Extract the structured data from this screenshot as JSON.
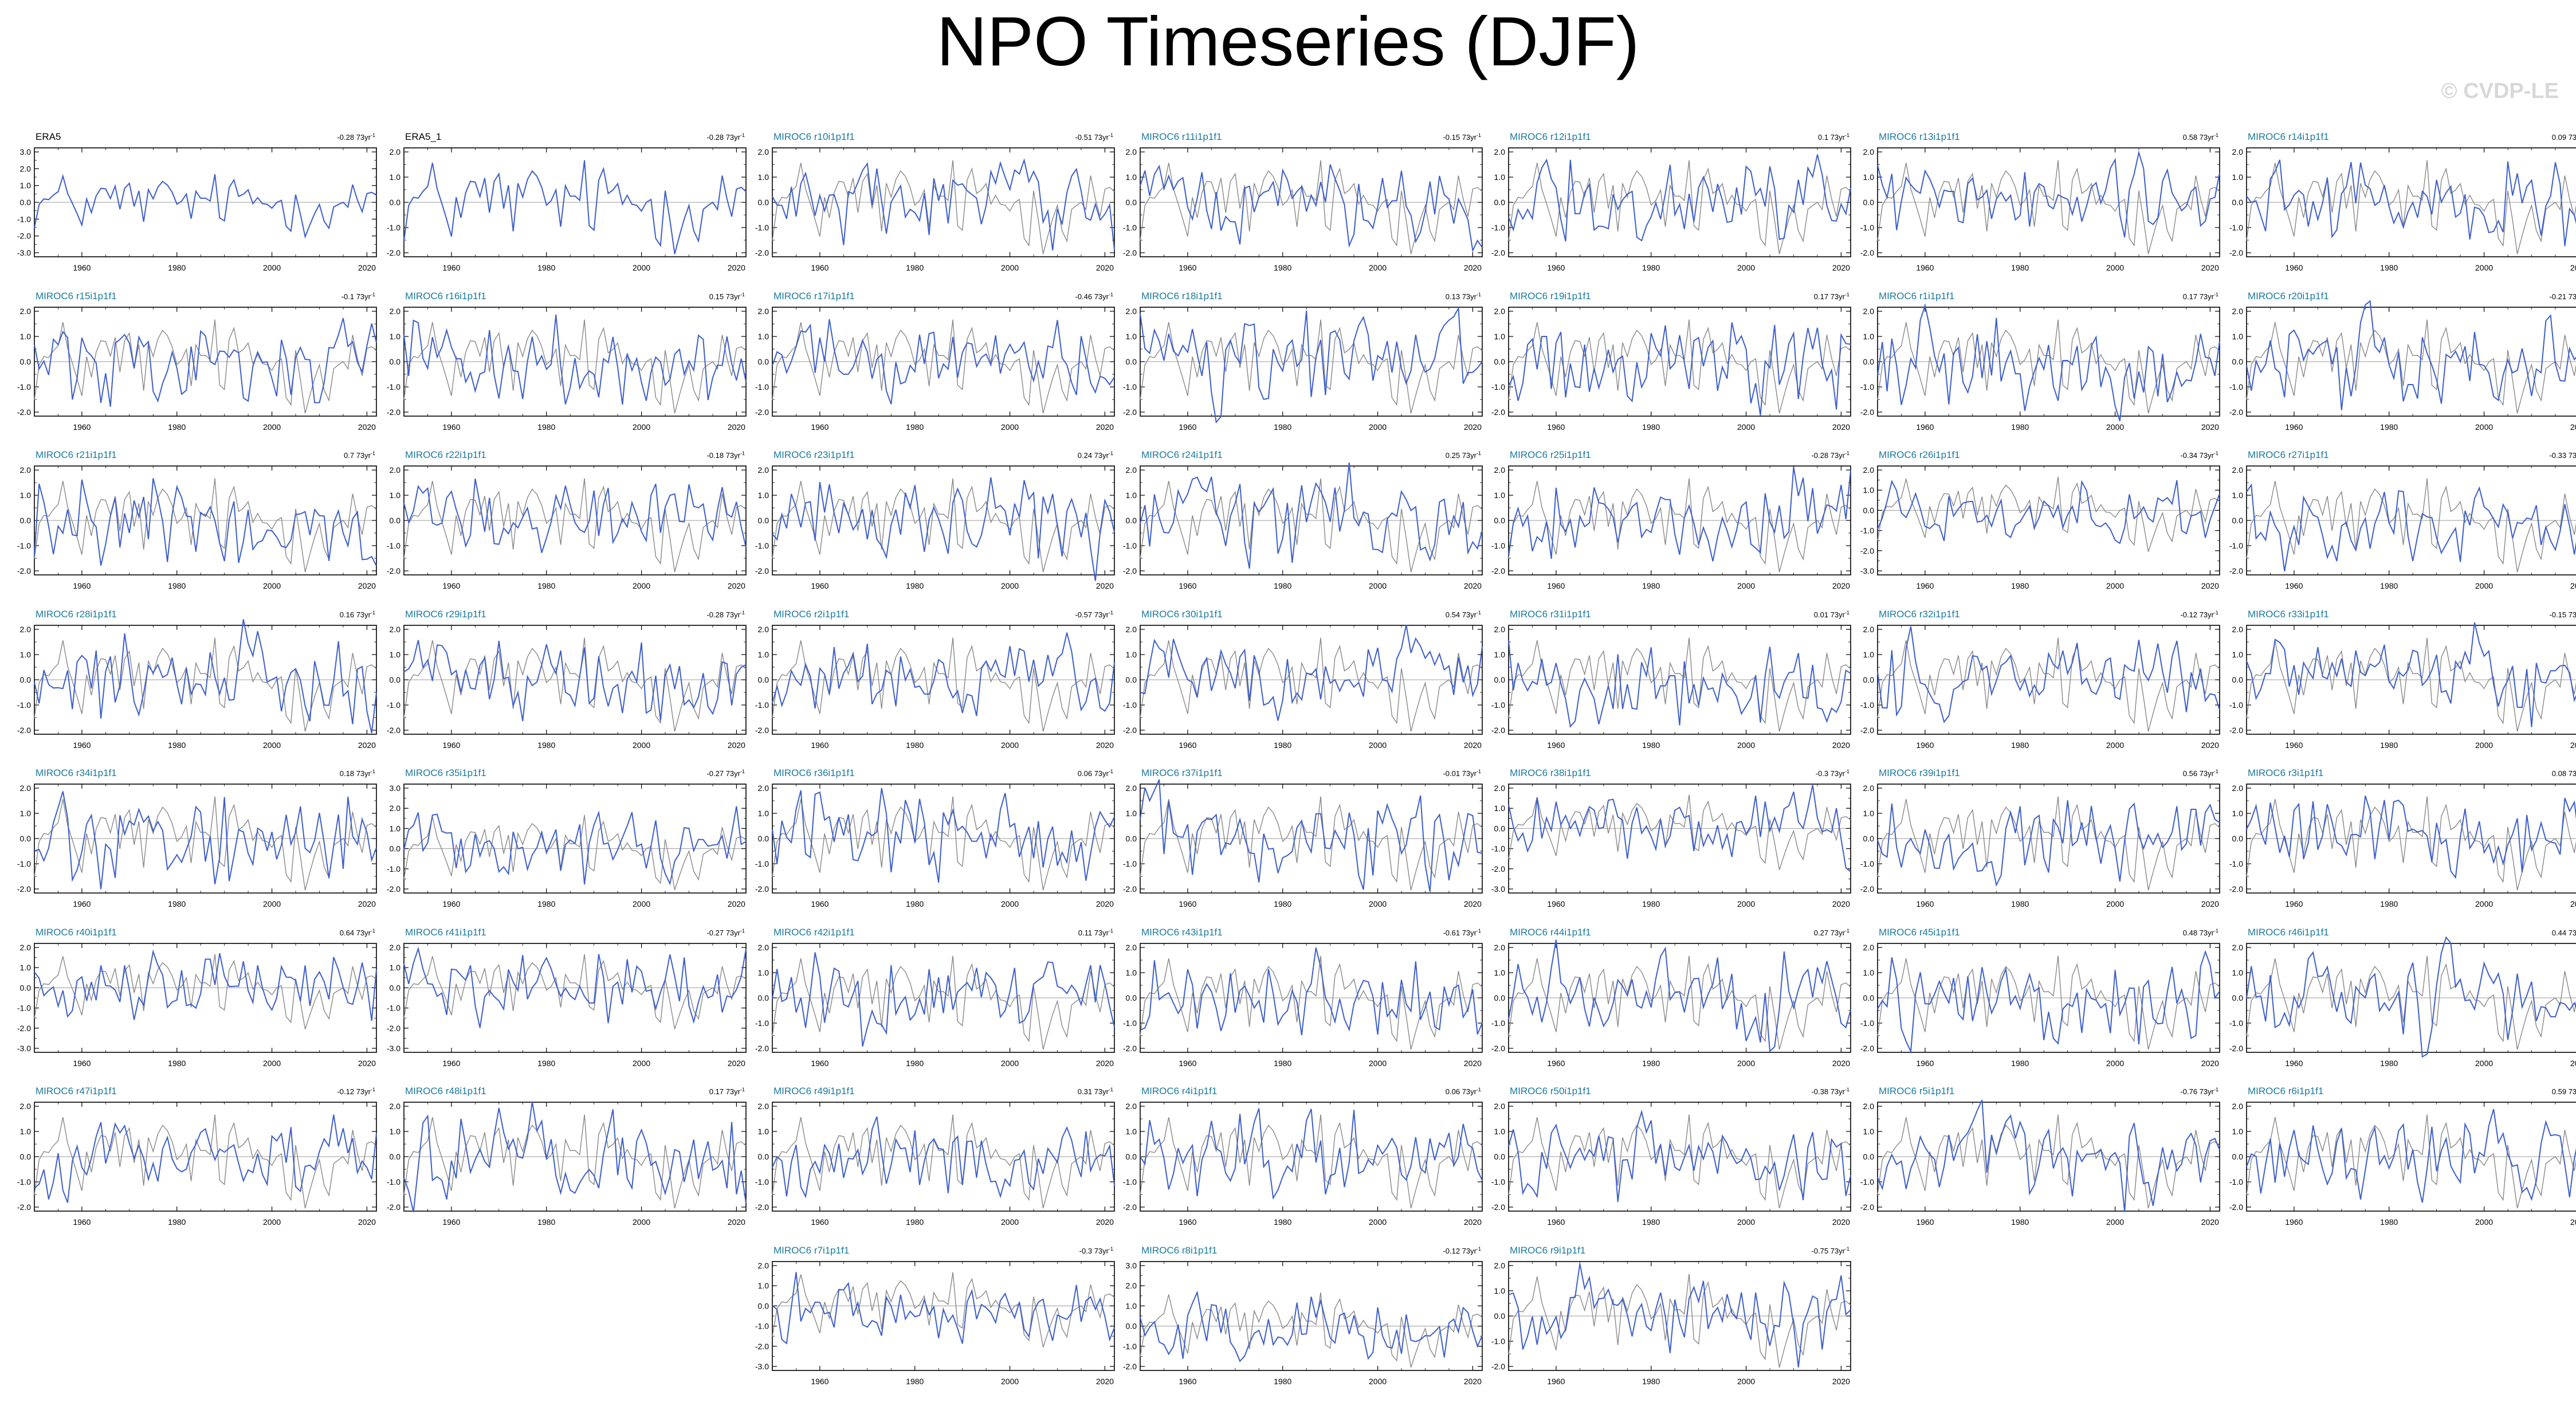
{
  "title": "NPO Timeseries (DJF)",
  "watermark": "© CVDP-LE",
  "colors": {
    "model_line": "#3d5fcc",
    "obs_line": "#888888",
    "zero_line": "#999999",
    "label_model": "#1a7aa0",
    "label_obs": "#000000"
  },
  "chart_data": {
    "type": "line",
    "title": "NPO Timeseries (DJF)",
    "x_range": [
      1950,
      2022
    ],
    "x_ticks": [
      1960,
      1980,
      2000,
      2020
    ],
    "grid": false,
    "note_series": "Each panel: blue = member NPO index, grey = ERA5 reference",
    "panels": [
      {
        "label": "ERA5",
        "trend": "-0.28",
        "yticks": [
          "3.0",
          "2.0",
          "1.0",
          "0.0",
          "-1.0",
          "-2.0",
          "-3.0"
        ]
      },
      {
        "label": "ERA5_1",
        "trend": "-0.28",
        "yticks": [
          "2.0",
          "1.0",
          "0.0",
          "-1.0",
          "-2.0"
        ]
      },
      {
        "label": "MIROC6 r10i1p1f1",
        "trend": "-0.51",
        "yticks": [
          "2.0",
          "1.0",
          "0.0",
          "-1.0",
          "-2.0"
        ]
      },
      {
        "label": "MIROC6 r11i1p1f1",
        "trend": "-0.15",
        "yticks": [
          "2.0",
          "1.0",
          "0.0",
          "-1.0",
          "-2.0"
        ]
      },
      {
        "label": "MIROC6 r12i1p1f1",
        "trend": "0.1",
        "yticks": [
          "2.0",
          "1.0",
          "0.0",
          "-1.0",
          "-2.0"
        ]
      },
      {
        "label": "MIROC6 r13i1p1f1",
        "trend": "0.58",
        "yticks": [
          "2.0",
          "1.0",
          "0.0",
          "-1.0",
          "-2.0"
        ]
      },
      {
        "label": "MIROC6 r14i1p1f1",
        "trend": "0.09",
        "yticks": [
          "2.0",
          "1.0",
          "0.0",
          "-1.0",
          "-2.0"
        ]
      },
      {
        "label": "MIROC6 r15i1p1f1",
        "trend": "-0.1",
        "yticks": [
          "2.0",
          "1.0",
          "0.0",
          "-1.0",
          "-2.0"
        ]
      },
      {
        "label": "MIROC6 r16i1p1f1",
        "trend": "0.15",
        "yticks": [
          "2.0",
          "1.0",
          "0.0",
          "-1.0",
          "-2.0"
        ]
      },
      {
        "label": "MIROC6 r17i1p1f1",
        "trend": "-0.46",
        "yticks": [
          "2.0",
          "1.0",
          "0.0",
          "-1.0",
          "-2.0"
        ]
      },
      {
        "label": "MIROC6 r18i1p1f1",
        "trend": "0.13",
        "yticks": [
          "2.0",
          "1.0",
          "0.0",
          "-1.0",
          "-2.0"
        ]
      },
      {
        "label": "MIROC6 r19i1p1f1",
        "trend": "0.17",
        "yticks": [
          "2.0",
          "1.0",
          "0.0",
          "-1.0",
          "-2.0"
        ]
      },
      {
        "label": "MIROC6 r1i1p1f1",
        "trend": "0.17",
        "yticks": [
          "2.0",
          "1.0",
          "0.0",
          "-1.0",
          "-2.0"
        ]
      },
      {
        "label": "MIROC6 r20i1p1f1",
        "trend": "-0.21",
        "yticks": [
          "2.0",
          "1.0",
          "0.0",
          "-1.0",
          "-2.0"
        ]
      },
      {
        "label": "MIROC6 r21i1p1f1",
        "trend": "0.7",
        "yticks": [
          "2.0",
          "1.0",
          "0.0",
          "-1.0",
          "-2.0"
        ]
      },
      {
        "label": "MIROC6 r22i1p1f1",
        "trend": "-0.18",
        "yticks": [
          "2.0",
          "1.0",
          "0.0",
          "-1.0",
          "-2.0"
        ]
      },
      {
        "label": "MIROC6 r23i1p1f1",
        "trend": "0.24",
        "yticks": [
          "2.0",
          "1.0",
          "0.0",
          "-1.0",
          "-2.0"
        ]
      },
      {
        "label": "MIROC6 r24i1p1f1",
        "trend": "0.25",
        "yticks": [
          "2.0",
          "1.0",
          "0.0",
          "-1.0",
          "-2.0"
        ]
      },
      {
        "label": "MIROC6 r25i1p1f1",
        "trend": "-0.28",
        "yticks": [
          "2.0",
          "1.0",
          "0.0",
          "-1.0",
          "-2.0"
        ]
      },
      {
        "label": "MIROC6 r26i1p1f1",
        "trend": "-0.34",
        "yticks": [
          "2.0",
          "1.0",
          "0.0",
          "-1.0",
          "-2.0",
          "-3.0"
        ]
      },
      {
        "label": "MIROC6 r27i1p1f1",
        "trend": "-0.33",
        "yticks": [
          "2.0",
          "1.0",
          "0.0",
          "-1.0",
          "-2.0"
        ]
      },
      {
        "label": "MIROC6 r28i1p1f1",
        "trend": "0.16",
        "yticks": [
          "2.0",
          "1.0",
          "0.0",
          "-1.0",
          "-2.0"
        ]
      },
      {
        "label": "MIROC6 r29i1p1f1",
        "trend": "-0.28",
        "yticks": [
          "2.0",
          "1.0",
          "0.0",
          "-1.0",
          "-2.0"
        ]
      },
      {
        "label": "MIROC6 r2i1p1f1",
        "trend": "-0.57",
        "yticks": [
          "2.0",
          "1.0",
          "0.0",
          "-1.0",
          "-2.0"
        ]
      },
      {
        "label": "MIROC6 r30i1p1f1",
        "trend": "0.54",
        "yticks": [
          "2.0",
          "1.0",
          "0.0",
          "-1.0",
          "-2.0"
        ]
      },
      {
        "label": "MIROC6 r31i1p1f1",
        "trend": "0.01",
        "yticks": [
          "2.0",
          "1.0",
          "0.0",
          "-1.0",
          "-2.0"
        ]
      },
      {
        "label": "MIROC6 r32i1p1f1",
        "trend": "-0.12",
        "yticks": [
          "2.0",
          "1.0",
          "0.0",
          "-1.0",
          "-2.0"
        ]
      },
      {
        "label": "MIROC6 r33i1p1f1",
        "trend": "-0.15",
        "yticks": [
          "2.0",
          "1.0",
          "0.0",
          "-1.0",
          "-2.0"
        ]
      },
      {
        "label": "MIROC6 r34i1p1f1",
        "trend": "0.18",
        "yticks": [
          "2.0",
          "1.0",
          "0.0",
          "-1.0",
          "-2.0"
        ]
      },
      {
        "label": "MIROC6 r35i1p1f1",
        "trend": "-0.27",
        "yticks": [
          "3.0",
          "2.0",
          "1.0",
          "0.0",
          "-1.0",
          "-2.0"
        ]
      },
      {
        "label": "MIROC6 r36i1p1f1",
        "trend": "0.06",
        "yticks": [
          "2.0",
          "1.0",
          "0.0",
          "-1.0",
          "-2.0"
        ]
      },
      {
        "label": "MIROC6 r37i1p1f1",
        "trend": "-0.01",
        "yticks": [
          "2.0",
          "1.0",
          "0.0",
          "-1.0",
          "-2.0"
        ]
      },
      {
        "label": "MIROC6 r38i1p1f1",
        "trend": "-0.3",
        "yticks": [
          "2.0",
          "1.0",
          "0.0",
          "-1.0",
          "-2.0",
          "-3.0"
        ]
      },
      {
        "label": "MIROC6 r39i1p1f1",
        "trend": "0.56",
        "yticks": [
          "2.0",
          "1.0",
          "0.0",
          "-1.0",
          "-2.0"
        ]
      },
      {
        "label": "MIROC6 r3i1p1f1",
        "trend": "0.08",
        "yticks": [
          "2.0",
          "1.0",
          "0.0",
          "-1.0",
          "-2.0"
        ]
      },
      {
        "label": "MIROC6 r40i1p1f1",
        "trend": "0.64",
        "yticks": [
          "2.0",
          "1.0",
          "0.0",
          "-1.0",
          "-2.0",
          "-3.0"
        ]
      },
      {
        "label": "MIROC6 r41i1p1f1",
        "trend": "-0.27",
        "yticks": [
          "2.0",
          "1.0",
          "0.0",
          "-1.0",
          "-2.0",
          "-3.0"
        ]
      },
      {
        "label": "MIROC6 r42i1p1f1",
        "trend": "0.11",
        "yticks": [
          "2.0",
          "1.0",
          "0.0",
          "-1.0",
          "-2.0"
        ]
      },
      {
        "label": "MIROC6 r43i1p1f1",
        "trend": "-0.61",
        "yticks": [
          "2.0",
          "1.0",
          "0.0",
          "-1.0",
          "-2.0"
        ]
      },
      {
        "label": "MIROC6 r44i1p1f1",
        "trend": "0.27",
        "yticks": [
          "2.0",
          "1.0",
          "0.0",
          "-1.0",
          "-2.0"
        ]
      },
      {
        "label": "MIROC6 r45i1p1f1",
        "trend": "0.48",
        "yticks": [
          "2.0",
          "1.0",
          "0.0",
          "-1.0",
          "-2.0"
        ]
      },
      {
        "label": "MIROC6 r46i1p1f1",
        "trend": "0.44",
        "yticks": [
          "2.0",
          "1.0",
          "0.0",
          "-1.0",
          "-2.0"
        ]
      },
      {
        "label": "MIROC6 r47i1p1f1",
        "trend": "-0.12",
        "yticks": [
          "2.0",
          "1.0",
          "0.0",
          "-1.0",
          "-2.0"
        ]
      },
      {
        "label": "MIROC6 r48i1p1f1",
        "trend": "0.17",
        "yticks": [
          "2.0",
          "1.0",
          "0.0",
          "-1.0",
          "-2.0"
        ]
      },
      {
        "label": "MIROC6 r49i1p1f1",
        "trend": "0.31",
        "yticks": [
          "2.0",
          "1.0",
          "0.0",
          "-1.0",
          "-2.0"
        ]
      },
      {
        "label": "MIROC6 r4i1p1f1",
        "trend": "0.06",
        "yticks": [
          "2.0",
          "1.0",
          "0.0",
          "-1.0",
          "-2.0"
        ]
      },
      {
        "label": "MIROC6 r50i1p1f1",
        "trend": "-0.38",
        "yticks": [
          "2.0",
          "1.0",
          "0.0",
          "-1.0",
          "-2.0"
        ]
      },
      {
        "label": "MIROC6 r5i1p1f1",
        "trend": "-0.76",
        "yticks": [
          "2.0",
          "1.0",
          "0.0",
          "-1.0",
          "-2.0"
        ]
      },
      {
        "label": "MIROC6 r6i1p1f1",
        "trend": "0.59",
        "yticks": [
          "2.0",
          "1.0",
          "0.0",
          "-1.0",
          "-2.0"
        ]
      },
      {
        "label": "MIROC6 r7i1p1f1",
        "trend": "-0.3",
        "yticks": [
          "2.0",
          "1.0",
          "0.0",
          "-1.0",
          "-2.0",
          "-3.0"
        ]
      },
      {
        "label": "MIROC6 r8i1p1f1",
        "trend": "-0.12",
        "yticks": [
          "3.0",
          "2.0",
          "1.0",
          "0.0",
          "-1.0",
          "-2.0"
        ]
      },
      {
        "label": "MIROC6 r9i1p1f1",
        "trend": "-0.75",
        "yticks": [
          "2.0",
          "1.0",
          "0.0",
          "-1.0",
          "-2.0"
        ]
      }
    ]
  }
}
